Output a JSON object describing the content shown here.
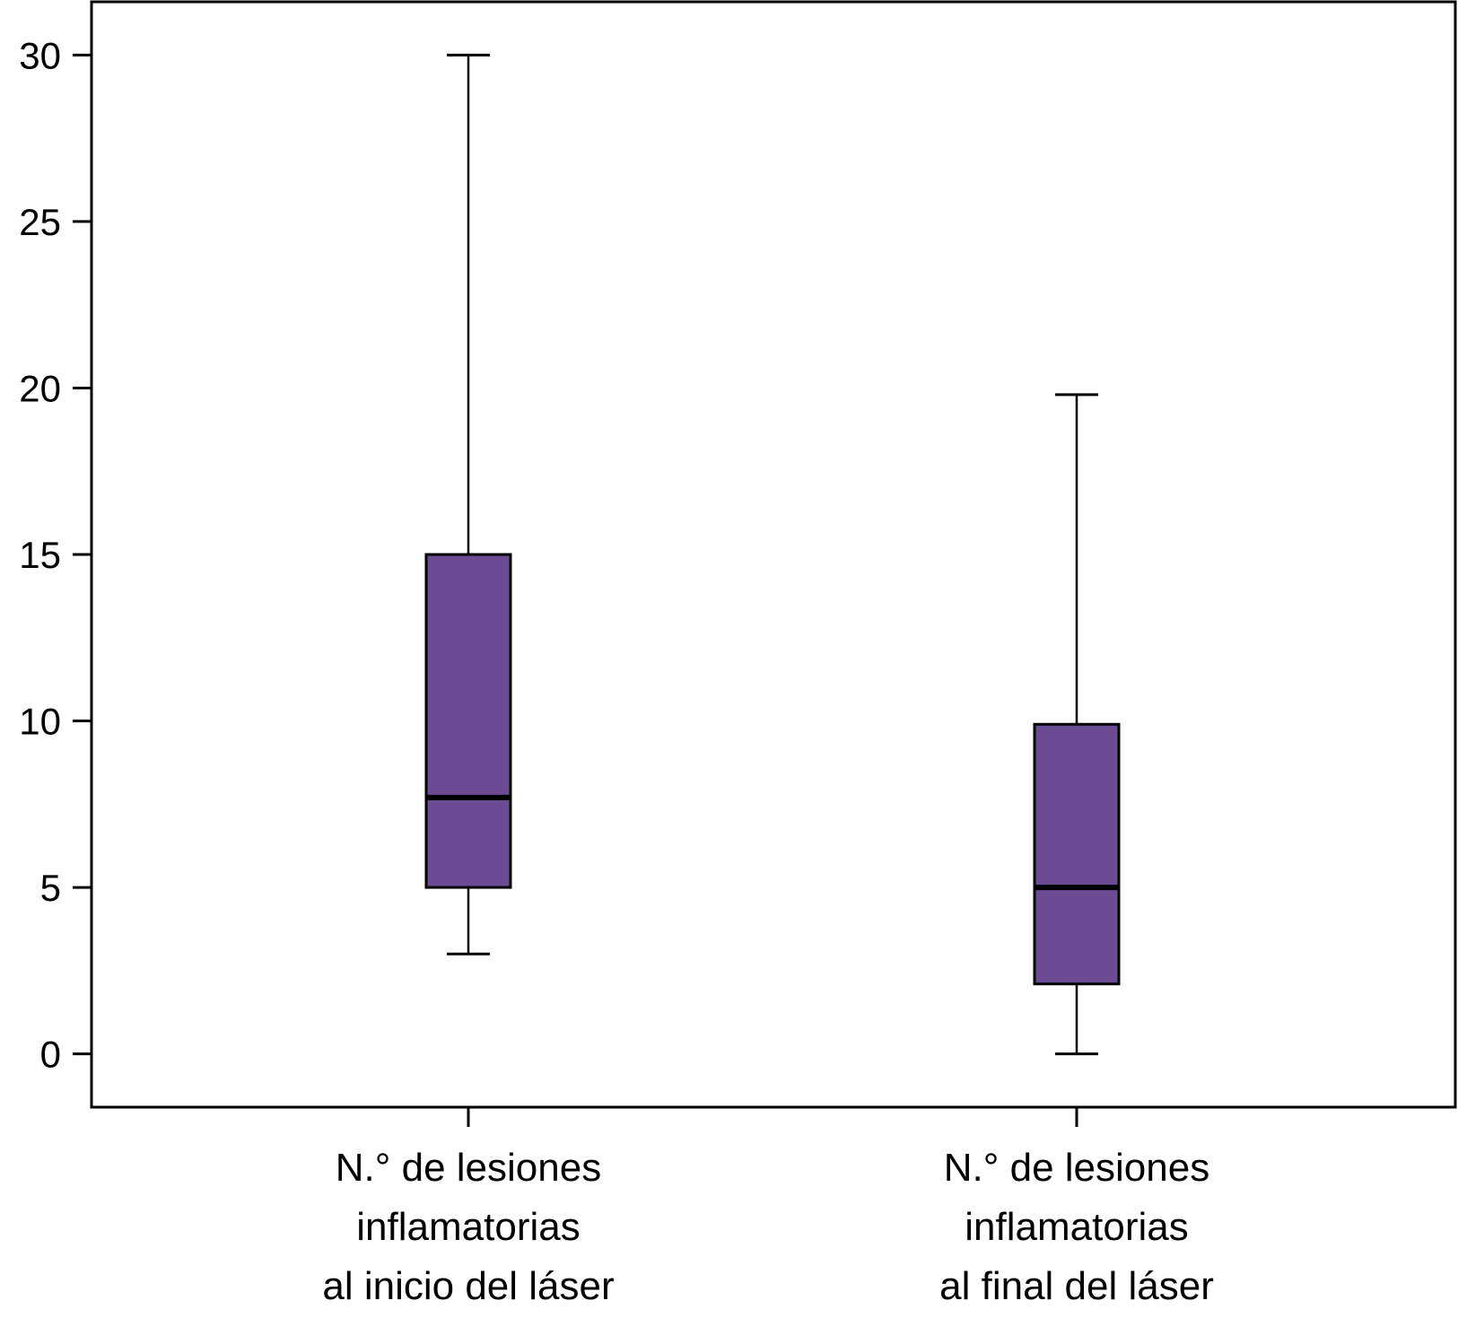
{
  "chart_data": {
    "type": "boxplot",
    "title": "",
    "xlabel": "",
    "ylabel": "",
    "ylim": [
      -1.6,
      31.6
    ],
    "yticks": [
      0,
      5,
      10,
      15,
      20,
      25,
      30
    ],
    "grid": false,
    "box_color": "#6a4b94",
    "categories": [
      [
        "N.° de lesiones",
        "inflamatorias",
        "al inicio del láser"
      ],
      [
        "N.° de lesiones",
        "inflamatorias",
        "al final del láser"
      ]
    ],
    "boxes": [
      {
        "whisker_low": 3,
        "q1": 5,
        "median": 7.7,
        "q3": 15,
        "whisker_high": 30
      },
      {
        "whisker_low": 0,
        "q1": 2.1,
        "median": 5,
        "q3": 9.9,
        "whisker_high": 19.8
      }
    ]
  }
}
